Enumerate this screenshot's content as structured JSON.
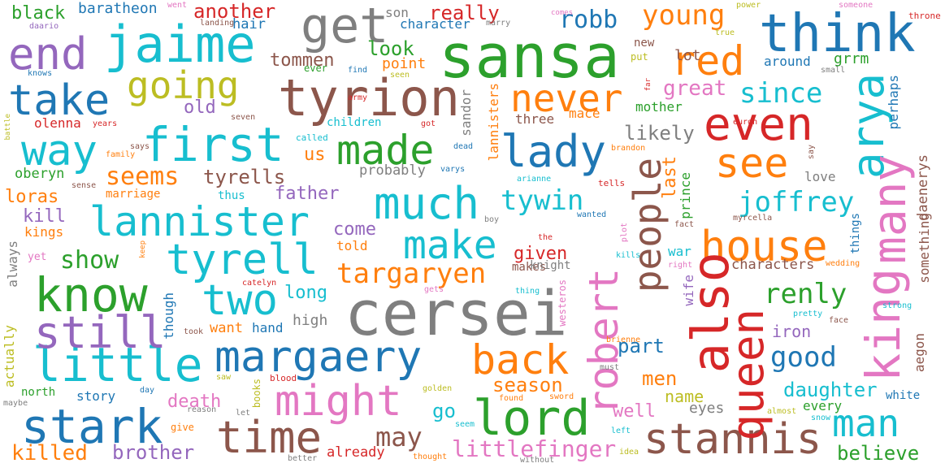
{
  "palette": {
    "blue": "#1f77b4",
    "orange": "#ff7f0e",
    "green": "#2ca02c",
    "red": "#d62728",
    "purple": "#9467bd",
    "brown": "#8c564b",
    "pink": "#e377c2",
    "gray": "#7f7f7f",
    "olive": "#bcbd22",
    "cyan": "#17becf"
  },
  "words": [
    {
      "text": "sansa",
      "color": "green"
    },
    {
      "text": "cersei",
      "color": "gray"
    },
    {
      "text": "tyrion",
      "color": "brown"
    },
    {
      "text": "jaime",
      "color": "cyan"
    },
    {
      "text": "think",
      "color": "blue"
    },
    {
      "text": "lannister",
      "color": "cyan"
    },
    {
      "text": "margaery",
      "color": "blue"
    },
    {
      "text": "lord",
      "color": "green"
    },
    {
      "text": "stannis",
      "color": "brown"
    },
    {
      "text": "little",
      "color": "cyan"
    },
    {
      "text": "stark",
      "color": "blue"
    },
    {
      "text": "might",
      "color": "pink"
    },
    {
      "text": "first",
      "color": "cyan"
    },
    {
      "text": "going",
      "color": "olive"
    },
    {
      "text": "end",
      "color": "purple"
    },
    {
      "text": "take",
      "color": "blue"
    },
    {
      "text": "way",
      "color": "cyan"
    },
    {
      "text": "know",
      "color": "green"
    },
    {
      "text": "still",
      "color": "purple"
    },
    {
      "text": "tyrell",
      "color": "cyan"
    },
    {
      "text": "two",
      "color": "cyan"
    },
    {
      "text": "much",
      "color": "cyan"
    },
    {
      "text": "make",
      "color": "cyan"
    },
    {
      "text": "lady",
      "color": "blue"
    },
    {
      "text": "made",
      "color": "green"
    },
    {
      "text": "get",
      "color": "gray"
    },
    {
      "text": "never",
      "color": "orange"
    },
    {
      "text": "red",
      "color": "orange"
    },
    {
      "text": "even",
      "color": "red"
    },
    {
      "text": "see",
      "color": "orange"
    },
    {
      "text": "house",
      "color": "orange"
    },
    {
      "text": "also",
      "color": "red"
    },
    {
      "text": "queen",
      "color": "red"
    },
    {
      "text": "king",
      "color": "pink"
    },
    {
      "text": "arya",
      "color": "cyan"
    },
    {
      "text": "many",
      "color": "pink"
    },
    {
      "text": "people",
      "color": "brown"
    },
    {
      "text": "robert",
      "color": "pink"
    },
    {
      "text": "back",
      "color": "orange"
    },
    {
      "text": "time",
      "color": "brown"
    },
    {
      "text": "man",
      "color": "cyan"
    },
    {
      "text": "young",
      "color": "orange"
    },
    {
      "text": "robb",
      "color": "blue"
    },
    {
      "text": "since",
      "color": "cyan"
    },
    {
      "text": "joffrey",
      "color": "cyan"
    },
    {
      "text": "renly",
      "color": "green"
    },
    {
      "text": "good",
      "color": "blue"
    },
    {
      "text": "tywin",
      "color": "cyan"
    },
    {
      "text": "targaryen",
      "color": "orange"
    },
    {
      "text": "littlefinger",
      "color": "pink"
    },
    {
      "text": "may",
      "color": "brown"
    },
    {
      "text": "season",
      "color": "orange"
    },
    {
      "text": "seems",
      "color": "orange"
    },
    {
      "text": "show",
      "color": "green"
    },
    {
      "text": "killed",
      "color": "orange"
    },
    {
      "text": "brother",
      "color": "purple"
    },
    {
      "text": "death",
      "color": "pink"
    },
    {
      "text": "believe",
      "color": "green"
    },
    {
      "text": "daughter",
      "color": "cyan"
    },
    {
      "text": "great",
      "color": "pink"
    },
    {
      "text": "likely",
      "color": "gray"
    },
    {
      "text": "tyrells",
      "color": "brown"
    },
    {
      "text": "black",
      "color": "green"
    },
    {
      "text": "baratheon",
      "color": "blue"
    },
    {
      "text": "another",
      "color": "red"
    },
    {
      "text": "really",
      "color": "red"
    },
    {
      "text": "son",
      "color": "gray"
    },
    {
      "text": "character",
      "color": "blue"
    },
    {
      "text": "hair",
      "color": "blue"
    },
    {
      "text": "look",
      "color": "green"
    },
    {
      "text": "tommen",
      "color": "brown"
    },
    {
      "text": "point",
      "color": "orange"
    },
    {
      "text": "lot",
      "color": "brown"
    },
    {
      "text": "around",
      "color": "blue"
    },
    {
      "text": "grrm",
      "color": "green"
    },
    {
      "text": "old",
      "color": "purple"
    },
    {
      "text": "olenna",
      "color": "red"
    },
    {
      "text": "us",
      "color": "orange"
    },
    {
      "text": "oberyn",
      "color": "green"
    },
    {
      "text": "father",
      "color": "purple"
    },
    {
      "text": "loras",
      "color": "orange"
    },
    {
      "text": "kill",
      "color": "purple"
    },
    {
      "text": "kings",
      "color": "orange"
    },
    {
      "text": "come",
      "color": "purple"
    },
    {
      "text": "told",
      "color": "orange"
    },
    {
      "text": "given",
      "color": "red"
    },
    {
      "text": "long",
      "color": "cyan"
    },
    {
      "text": "high",
      "color": "gray"
    },
    {
      "text": "want",
      "color": "orange"
    },
    {
      "text": "hand",
      "color": "blue"
    },
    {
      "text": "part",
      "color": "blue"
    },
    {
      "text": "iron",
      "color": "purple"
    },
    {
      "text": "men",
      "color": "orange"
    },
    {
      "text": "name",
      "color": "olive"
    },
    {
      "text": "well",
      "color": "pink"
    },
    {
      "text": "eyes",
      "color": "gray"
    },
    {
      "text": "go",
      "color": "cyan"
    },
    {
      "text": "story",
      "color": "blue"
    },
    {
      "text": "north",
      "color": "green"
    },
    {
      "text": "already",
      "color": "red"
    },
    {
      "text": "mother",
      "color": "green"
    },
    {
      "text": "three",
      "color": "brown"
    },
    {
      "text": "mace",
      "color": "orange"
    },
    {
      "text": "probably",
      "color": "gray"
    },
    {
      "text": "children",
      "color": "cyan"
    },
    {
      "text": "love",
      "color": "gray"
    },
    {
      "text": "characters",
      "color": "brown"
    },
    {
      "text": "marriage",
      "color": "orange"
    },
    {
      "text": "thus",
      "color": "cyan"
    },
    {
      "text": "makes",
      "color": "brown"
    },
    {
      "text": "knight",
      "color": "gray"
    },
    {
      "text": "every",
      "color": "green"
    },
    {
      "text": "war",
      "color": "cyan"
    },
    {
      "text": "new",
      "color": "brown"
    },
    {
      "text": "put",
      "color": "olive"
    },
    {
      "text": "ever",
      "color": "green"
    },
    {
      "text": "give",
      "color": "orange"
    },
    {
      "text": "yet",
      "color": "pink"
    },
    {
      "text": "white",
      "color": "blue"
    },
    {
      "text": "daenerys",
      "color": "brown"
    },
    {
      "text": "something",
      "color": "brown"
    },
    {
      "text": "aegon",
      "color": "brown"
    },
    {
      "text": "perhaps",
      "color": "blue"
    },
    {
      "text": "always",
      "color": "gray"
    },
    {
      "text": "actually",
      "color": "olive"
    },
    {
      "text": "though",
      "color": "blue"
    },
    {
      "text": "last",
      "color": "orange"
    },
    {
      "text": "prince",
      "color": "green"
    },
    {
      "text": "wife",
      "color": "purple"
    },
    {
      "text": "sandor",
      "color": "gray"
    },
    {
      "text": "lannisters",
      "color": "orange"
    },
    {
      "text": "things",
      "color": "blue"
    },
    {
      "text": "books",
      "color": "olive"
    },
    {
      "text": "westeros",
      "color": "pink"
    },
    {
      "text": "went",
      "color": "pink"
    },
    {
      "text": "daario",
      "color": "purple"
    },
    {
      "text": "landing",
      "color": "brown"
    },
    {
      "text": "marry",
      "color": "gray"
    },
    {
      "text": "comes",
      "color": "pink"
    },
    {
      "text": "power",
      "color": "olive"
    },
    {
      "text": "someone",
      "color": "pink"
    },
    {
      "text": "throne",
      "color": "red"
    },
    {
      "text": "knows",
      "color": "blue"
    },
    {
      "text": "true",
      "color": "olive"
    },
    {
      "text": "find",
      "color": "blue"
    },
    {
      "text": "seen",
      "color": "olive"
    },
    {
      "text": "small",
      "color": "gray"
    },
    {
      "text": "army",
      "color": "red"
    },
    {
      "text": "seven",
      "color": "brown"
    },
    {
      "text": "years",
      "color": "red"
    },
    {
      "text": "got",
      "color": "red"
    },
    {
      "text": "euron",
      "color": "red"
    },
    {
      "text": "battle",
      "color": "olive"
    },
    {
      "text": "family",
      "color": "orange"
    },
    {
      "text": "says",
      "color": "brown"
    },
    {
      "text": "called",
      "color": "cyan"
    },
    {
      "text": "dead",
      "color": "blue"
    },
    {
      "text": "brandon",
      "color": "orange"
    },
    {
      "text": "say",
      "color": "brown"
    },
    {
      "text": "varys",
      "color": "blue"
    },
    {
      "text": "sense",
      "color": "brown"
    },
    {
      "text": "arianne",
      "color": "cyan"
    },
    {
      "text": "tells",
      "color": "red"
    },
    {
      "text": "boy",
      "color": "gray"
    },
    {
      "text": "wanted",
      "color": "blue"
    },
    {
      "text": "fact",
      "color": "brown"
    },
    {
      "text": "myrcella",
      "color": "brown"
    },
    {
      "text": "the",
      "color": "red"
    },
    {
      "text": "keep",
      "color": "orange"
    },
    {
      "text": "plot",
      "color": "pink"
    },
    {
      "text": "kills",
      "color": "cyan"
    },
    {
      "text": "right",
      "color": "pink"
    },
    {
      "text": "wedding",
      "color": "orange"
    },
    {
      "text": "catelyn",
      "color": "red"
    },
    {
      "text": "gets",
      "color": "pink"
    },
    {
      "text": "thing",
      "color": "cyan"
    },
    {
      "text": "strong",
      "color": "cyan"
    },
    {
      "text": "pretty",
      "color": "cyan"
    },
    {
      "text": "face",
      "color": "brown"
    },
    {
      "text": "took",
      "color": "brown"
    },
    {
      "text": "must",
      "color": "gray"
    },
    {
      "text": "brienne",
      "color": "orange"
    },
    {
      "text": "saw",
      "color": "olive"
    },
    {
      "text": "blood",
      "color": "red"
    },
    {
      "text": "day",
      "color": "blue"
    },
    {
      "text": "golden",
      "color": "olive"
    },
    {
      "text": "found",
      "color": "orange"
    },
    {
      "text": "sword",
      "color": "orange"
    },
    {
      "text": "almost",
      "color": "olive"
    },
    {
      "text": "snow",
      "color": "cyan"
    },
    {
      "text": "maybe",
      "color": "gray"
    },
    {
      "text": "reason",
      "color": "gray"
    },
    {
      "text": "let",
      "color": "gray"
    },
    {
      "text": "seem",
      "color": "cyan"
    },
    {
      "text": "left",
      "color": "cyan"
    },
    {
      "text": "idea",
      "color": "olive"
    },
    {
      "text": "better",
      "color": "gray"
    },
    {
      "text": "thought",
      "color": "orange"
    },
    {
      "text": "without",
      "color": "gray"
    },
    {
      "text": "far",
      "color": "red"
    }
  ]
}
